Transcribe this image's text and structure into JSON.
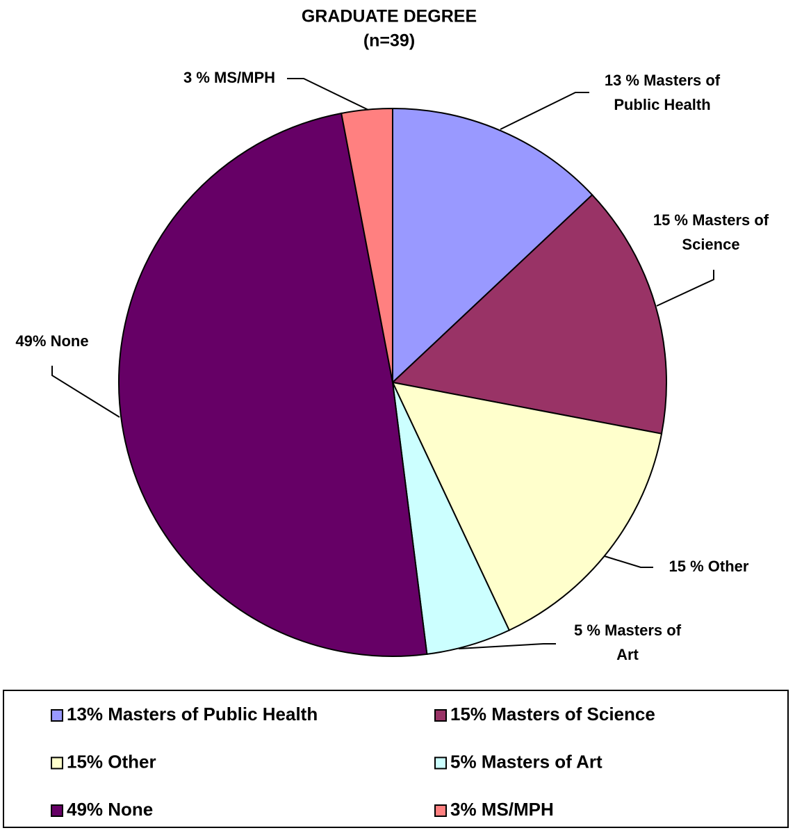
{
  "chart_data": {
    "type": "pie",
    "title": "GRADUATE DEGREE",
    "subtitle": "(n=39)",
    "categories": [
      "13% Masters of Public Health",
      "15% Masters of Science",
      "15% Other",
      "5% Masters of Art",
      "49% None",
      "3% MS/MPH"
    ],
    "values": [
      13,
      15,
      15,
      5,
      49,
      3
    ],
    "value_labels": [
      [
        "13 % Masters of",
        "Public Health"
      ],
      [
        "15 % Masters of",
        "Science"
      ],
      [
        "15 % Other"
      ],
      [
        "5 % Masters of",
        "Art"
      ],
      [
        "49% None"
      ],
      [
        "3 % MS/MPH"
      ]
    ],
    "colors": [
      "#9999ff",
      "#993366",
      "#ffffcc",
      "#ccffff",
      "#660066",
      "#ff8080"
    ],
    "legend": "bottom"
  }
}
